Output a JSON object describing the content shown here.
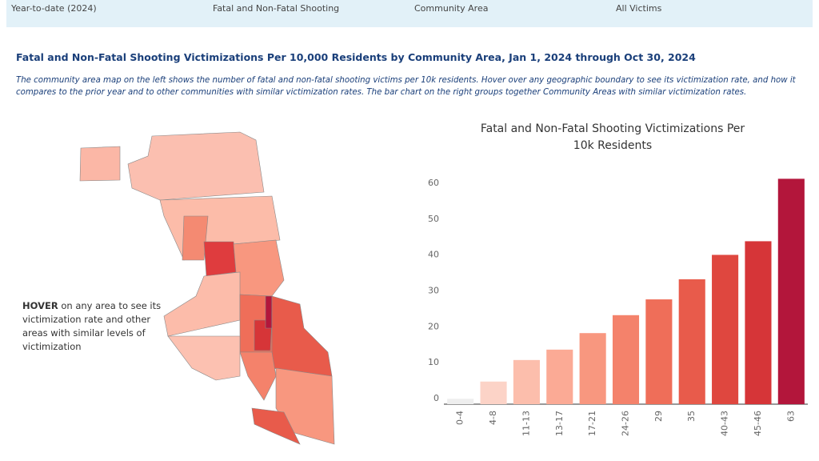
{
  "filters": [
    "Year-to-date (2024)",
    "Fatal and Non-Fatal Shooting",
    "Community Area",
    "All Victims"
  ],
  "heading": "Fatal and Non-Fatal Shooting Victimizations Per 10,000 Residents by Community Area, Jan 1, 2024 through Oct 30, 2024",
  "description": "The community area map on the left shows the number of fatal and non-fatal shooting victims per 10k residents. Hover over any geographic boundary to see its victimization rate, and how it compares to the prior year and to other communities with similar victimization rates. The bar chart on the right groups together Community Areas with similar victimization rates.",
  "hover_note": {
    "emphasis": "HOVER",
    "text": "on any area to see its victimization rate and other areas with similar levels of victimization"
  },
  "chart_data": {
    "type": "bar",
    "title": "Fatal and Non-Fatal Shooting Victimizations Per 10k Residents",
    "categories": [
      "0-4",
      "4-8",
      "11-13",
      "13-17",
      "17-21",
      "24-26",
      "29",
      "35",
      "40-43",
      "45-46",
      "63"
    ],
    "values": [
      1.5,
      6.3,
      12.3,
      15.2,
      19.8,
      24.8,
      29.2,
      34.8,
      41.6,
      45.4,
      62.8
    ],
    "colors": [
      "#eeeeee",
      "#fcd3c7",
      "#fcbeac",
      "#fbaa95",
      "#f8977f",
      "#f4826b",
      "#ef6e59",
      "#e85b4b",
      "#df473f",
      "#d63538",
      "#b3163b"
    ],
    "ylim": [
      0,
      64
    ],
    "yticks": [
      0,
      10,
      20,
      30,
      40,
      50,
      60
    ],
    "grid": false
  }
}
